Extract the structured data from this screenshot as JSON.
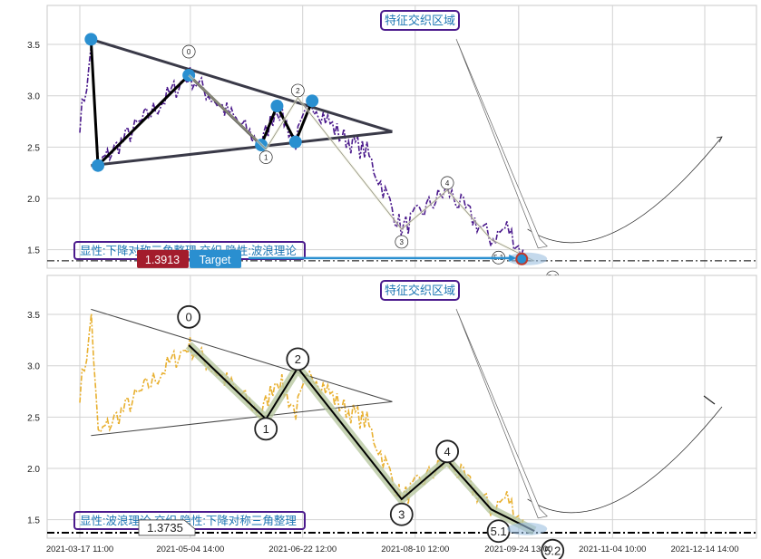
{
  "chart_data": [
    {
      "type": "line",
      "title": "",
      "xlabel": "",
      "ylabel": "",
      "ylim": [
        1.32,
        3.88
      ],
      "yticks": [
        1.5,
        2.0,
        2.5,
        3.0,
        3.5
      ],
      "grid": true,
      "overlay": "triangle-and-wave",
      "callout_title": "特征交织区域",
      "footer": "显性:下降对称三角整理 交织 隐性:波浪理论",
      "price_badge": "1.3913",
      "target_badge": "Target",
      "target_value": 1.3913,
      "wave_labels": [
        "0",
        "1",
        "2",
        "3",
        "4",
        "5.1",
        "5.2"
      ],
      "series_color": "#4b1a8c",
      "accent": "#2a8fd0"
    },
    {
      "type": "line",
      "title": "",
      "xlabel": "",
      "ylabel": "",
      "ylim": [
        1.32,
        3.88
      ],
      "yticks": [
        1.5,
        2.0,
        2.5,
        3.0,
        3.5
      ],
      "grid": true,
      "overlay": "wave-and-triangle",
      "callout_title": "特征交织区域",
      "footer": "显性:波浪理论 交织 隐性:下降对称三角整理",
      "price_badge": "1.3735",
      "target_value": 1.3735,
      "wave_labels": [
        "0",
        "1",
        "2",
        "3",
        "4",
        "5.1",
        "5.2"
      ],
      "series_color": "#e8b030",
      "accent": "#2a8fd0"
    }
  ],
  "x_axis": {
    "ticks": [
      "2021-03-17 11:00",
      "2021-05-04 14:00",
      "2021-06-22 12:00",
      "2021-08-10 12:00",
      "2021-09-24 13:00",
      "2021-11-04 10:00",
      "2021-12-14 14:00"
    ]
  },
  "wave_points": {
    "x": [
      "2021-05-03 22:00",
      "2021-06-06 12:00",
      "2021-06-20 09:00",
      "2021-08-04 14:00",
      "2021-08-24 11:00",
      "2021-09-12 15:00",
      "2021-10-01 10:00"
    ],
    "y": [
      3.2,
      2.48,
      2.98,
      1.7,
      2.08,
      1.6,
      1.39
    ]
  },
  "triangle": {
    "upper": {
      "x": [
        "2021-03-22 08:00",
        "2021-07-31 12:00"
      ],
      "y": [
        3.55,
        2.65
      ]
    },
    "lower": {
      "x": [
        "2021-03-22 08:00",
        "2021-07-31 12:00"
      ],
      "y": [
        2.32,
        2.65
      ]
    },
    "pivots": {
      "x": [
        "2021-03-22 08:00",
        "2021-03-25 09:00",
        "2021-05-03 22:00",
        "2021-06-04 12:00",
        "2021-06-11 08:00",
        "2021-06-19 09:00",
        "2021-06-26 15:00"
      ],
      "y": [
        3.55,
        2.32,
        3.2,
        2.52,
        2.9,
        2.55,
        2.95
      ]
    }
  }
}
